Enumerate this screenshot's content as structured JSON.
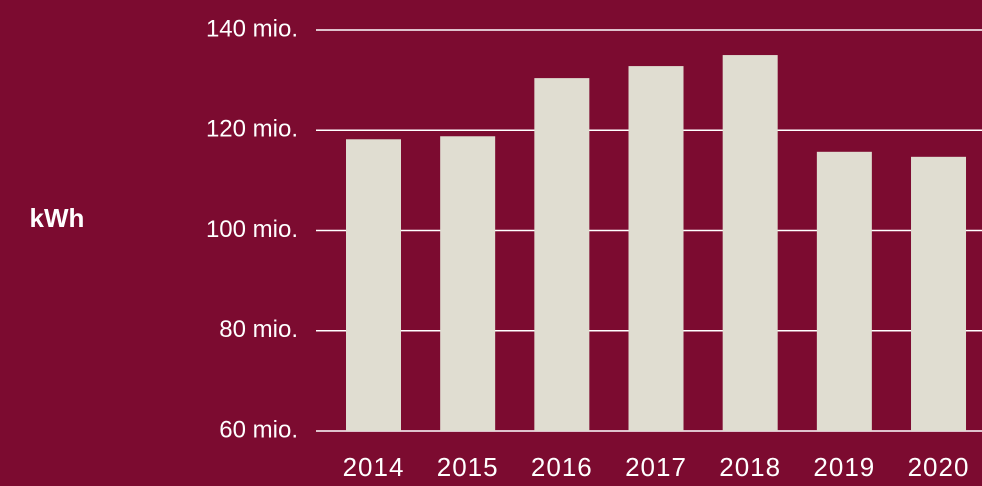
{
  "chart_data": {
    "type": "bar",
    "y_label": "kWh",
    "categories": [
      "2014",
      "2015",
      "2016",
      "2017",
      "2018",
      "2019",
      "2020"
    ],
    "values": [
      118200000,
      118800000,
      130400000,
      132800000,
      135000000,
      115700000,
      114700000
    ],
    "color": "#e0ddd1",
    "ylim": [
      60000000,
      140000000
    ],
    "yticks": [
      {
        "value": 60000000,
        "label": "60 mio."
      },
      {
        "value": 80000000,
        "label": "80 mio."
      },
      {
        "value": 100000000,
        "label": "100 mio."
      },
      {
        "value": 120000000,
        "label": "120 mio."
      },
      {
        "value": 140000000,
        "label": "140 mio."
      }
    ],
    "grid": true
  }
}
